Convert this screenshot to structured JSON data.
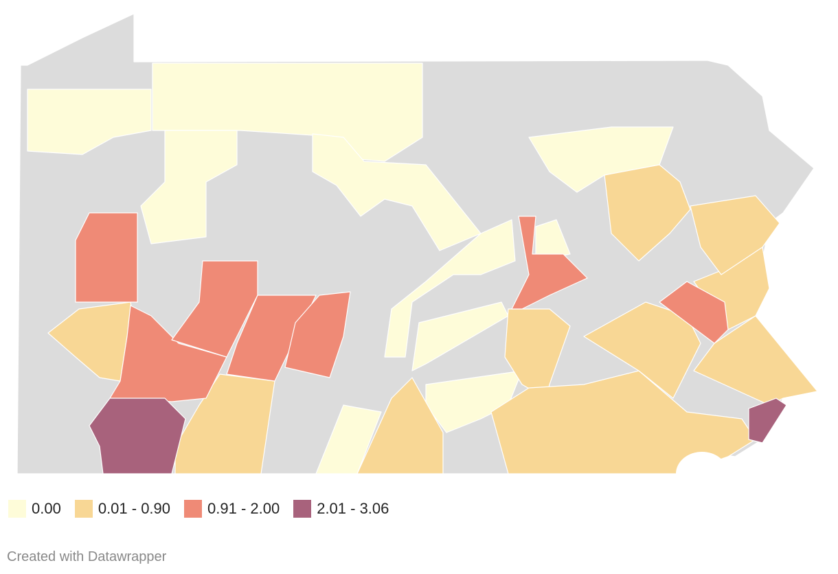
{
  "legend": {
    "items": [
      {
        "label": "0.00",
        "color": "#fefcd9"
      },
      {
        "label": "0.01 - 0.90",
        "color": "#f8d795"
      },
      {
        "label": "0.91 - 2.00",
        "color": "#ef8a76"
      },
      {
        "label": "2.01 - 3.06",
        "color": "#a8627c"
      }
    ]
  },
  "footer": "Created with Datawrapper"
}
